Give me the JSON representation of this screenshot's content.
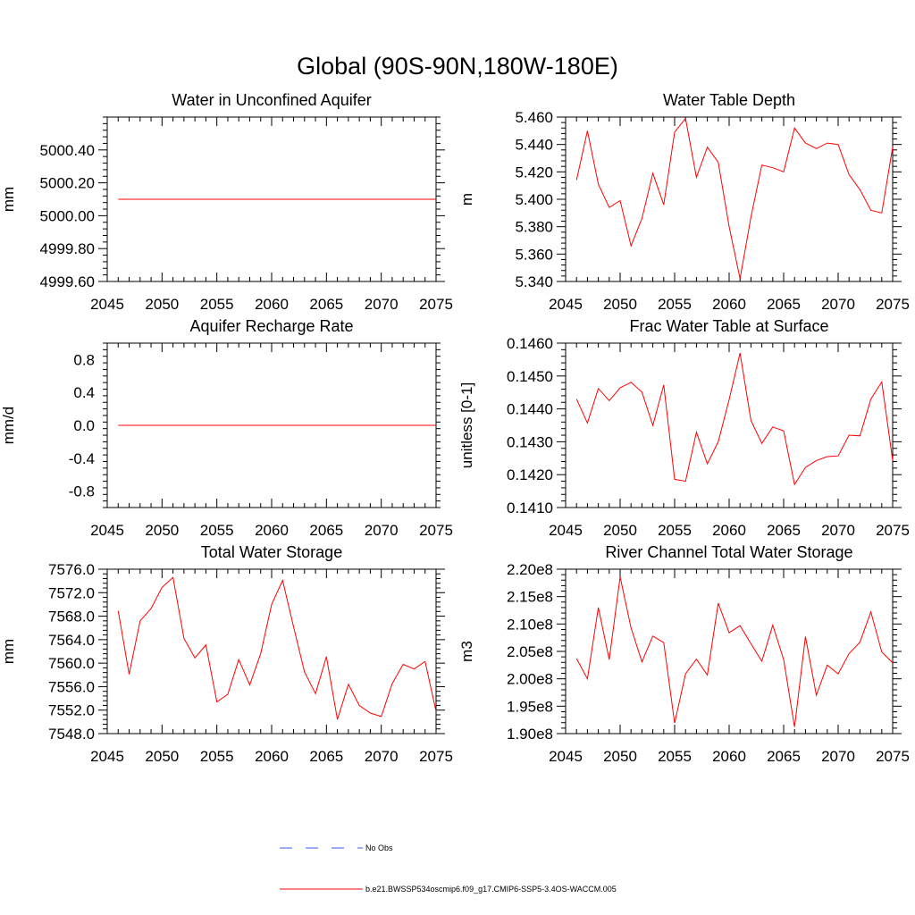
{
  "figure_title": "Global (90S-90N,180W-180E)",
  "chart_data": [
    {
      "type": "line",
      "title": "Water in Unconfined Aquifer",
      "xlabel": "",
      "ylabel": "mm",
      "xlim": [
        2045,
        2075
      ],
      "ylim": [
        4999.6,
        5000.6
      ],
      "xticks": [
        2045,
        2050,
        2055,
        2060,
        2065,
        2070,
        2075
      ],
      "xtick_labels": [
        "2045",
        "2050",
        "2055",
        "2060",
        "2065",
        "2070",
        "2075"
      ],
      "yticks": [
        4999.6,
        4999.8,
        5000.0,
        5000.2,
        5000.4
      ],
      "ytick_labels": [
        "4999.60",
        "4999.80",
        "5000.00",
        "5000.20",
        "5000.40"
      ],
      "series": [
        {
          "name": "b.e21.BWSSP534oscmip6.f09_g17.CMIP6-SSP5-3.4OS-WACCM.005",
          "color": "#ff0000",
          "x": [
            2046,
            2047,
            2048,
            2049,
            2050,
            2051,
            2052,
            2053,
            2054,
            2055,
            2056,
            2057,
            2058,
            2059,
            2060,
            2061,
            2062,
            2063,
            2064,
            2065,
            2066,
            2067,
            2068,
            2069,
            2070,
            2071,
            2072,
            2073,
            2074,
            2075
          ],
          "values": [
            5000.1,
            5000.1,
            5000.1,
            5000.1,
            5000.1,
            5000.1,
            5000.1,
            5000.1,
            5000.1,
            5000.1,
            5000.1,
            5000.1,
            5000.1,
            5000.1,
            5000.1,
            5000.1,
            5000.1,
            5000.1,
            5000.1,
            5000.1,
            5000.1,
            5000.1,
            5000.1,
            5000.1,
            5000.1,
            5000.1,
            5000.1,
            5000.1,
            5000.1,
            5000.1
          ]
        }
      ]
    },
    {
      "type": "line",
      "title": "Water Table Depth",
      "xlabel": "",
      "ylabel": "m",
      "xlim": [
        2045,
        2075
      ],
      "ylim": [
        5.34,
        5.46
      ],
      "xticks": [
        2045,
        2050,
        2055,
        2060,
        2065,
        2070,
        2075
      ],
      "xtick_labels": [
        "2045",
        "2050",
        "2055",
        "2060",
        "2065",
        "2070",
        "2075"
      ],
      "yticks": [
        5.34,
        5.36,
        5.38,
        5.4,
        5.42,
        5.44,
        5.46
      ],
      "ytick_labels": [
        "5.340",
        "5.360",
        "5.380",
        "5.400",
        "5.420",
        "5.440",
        "5.460"
      ],
      "series": [
        {
          "name": "b.e21.BWSSP534oscmip6.f09_g17.CMIP6-SSP5-3.4OS-WACCM.005",
          "color": "#ff0000",
          "x": [
            2046,
            2047,
            2048,
            2049,
            2050,
            2051,
            2052,
            2053,
            2054,
            2055,
            2056,
            2057,
            2058,
            2059,
            2060,
            2061,
            2062,
            2063,
            2064,
            2065,
            2066,
            2067,
            2068,
            2069,
            2070,
            2071,
            2072,
            2073,
            2074,
            2075
          ],
          "values": [
            5.414,
            5.45,
            5.411,
            5.394,
            5.399,
            5.366,
            5.386,
            5.419,
            5.396,
            5.449,
            5.459,
            5.416,
            5.438,
            5.427,
            5.38,
            5.342,
            5.387,
            5.425,
            5.423,
            5.42,
            5.452,
            5.441,
            5.437,
            5.441,
            5.44,
            5.418,
            5.407,
            5.392,
            5.39,
            5.438
          ]
        }
      ]
    },
    {
      "type": "line",
      "title": "Aquifer Recharge Rate",
      "xlabel": "",
      "ylabel": "mm/d",
      "xlim": [
        2045,
        2075
      ],
      "ylim": [
        -1.0,
        1.0
      ],
      "xticks": [
        2045,
        2050,
        2055,
        2060,
        2065,
        2070,
        2075
      ],
      "xtick_labels": [
        "2045",
        "2050",
        "2055",
        "2060",
        "2065",
        "2070",
        "2075"
      ],
      "yticks": [
        -0.8,
        -0.4,
        0.0,
        0.4,
        0.8
      ],
      "ytick_labels": [
        "-0.8",
        "-0.4",
        "0.0",
        "0.4",
        "0.8"
      ],
      "series": [
        {
          "name": "b.e21.BWSSP534oscmip6.f09_g17.CMIP6-SSP5-3.4OS-WACCM.005",
          "color": "#ff0000",
          "x": [
            2046,
            2047,
            2048,
            2049,
            2050,
            2051,
            2052,
            2053,
            2054,
            2055,
            2056,
            2057,
            2058,
            2059,
            2060,
            2061,
            2062,
            2063,
            2064,
            2065,
            2066,
            2067,
            2068,
            2069,
            2070,
            2071,
            2072,
            2073,
            2074,
            2075
          ],
          "values": [
            0,
            0,
            0,
            0,
            0,
            0,
            0,
            0,
            0,
            0,
            0,
            0,
            0,
            0,
            0,
            0,
            0,
            0,
            0,
            0,
            0,
            0,
            0,
            0,
            0,
            0,
            0,
            0,
            0,
            0
          ]
        }
      ]
    },
    {
      "type": "line",
      "title": "Frac Water Table at Surface",
      "xlabel": "",
      "ylabel": "unitless [0-1]",
      "xlim": [
        2045,
        2075
      ],
      "ylim": [
        0.141,
        0.146
      ],
      "xticks": [
        2045,
        2050,
        2055,
        2060,
        2065,
        2070,
        2075
      ],
      "xtick_labels": [
        "2045",
        "2050",
        "2055",
        "2060",
        "2065",
        "2070",
        "2075"
      ],
      "yticks": [
        0.141,
        0.142,
        0.143,
        0.144,
        0.145,
        0.146
      ],
      "ytick_labels": [
        "0.1410",
        "0.1420",
        "0.1430",
        "0.1440",
        "0.1450",
        "0.1460"
      ],
      "series": [
        {
          "name": "b.e21.BWSSP534oscmip6.f09_g17.CMIP6-SSP5-3.4OS-WACCM.005",
          "color": "#ff0000",
          "x": [
            2046,
            2047,
            2048,
            2049,
            2050,
            2051,
            2052,
            2053,
            2054,
            2055,
            2056,
            2057,
            2058,
            2059,
            2060,
            2061,
            2062,
            2063,
            2064,
            2065,
            2066,
            2067,
            2068,
            2069,
            2070,
            2071,
            2072,
            2073,
            2074,
            2075
          ],
          "values": [
            0.1443,
            0.14357,
            0.14462,
            0.14425,
            0.14464,
            0.14481,
            0.14451,
            0.1435,
            0.14473,
            0.14186,
            0.1418,
            0.14329,
            0.14233,
            0.143,
            0.14428,
            0.1457,
            0.14365,
            0.14295,
            0.14345,
            0.14333,
            0.1417,
            0.14222,
            0.14243,
            0.14255,
            0.14257,
            0.1432,
            0.14318,
            0.1443,
            0.14482,
            0.14243
          ]
        }
      ]
    },
    {
      "type": "line",
      "title": "Total Water Storage",
      "xlabel": "",
      "ylabel": "mm",
      "xlim": [
        2045,
        2075
      ],
      "ylim": [
        7548,
        7576
      ],
      "xticks": [
        2045,
        2050,
        2055,
        2060,
        2065,
        2070,
        2075
      ],
      "xtick_labels": [
        "2045",
        "2050",
        "2055",
        "2060",
        "2065",
        "2070",
        "2075"
      ],
      "yticks": [
        7548,
        7552,
        7556,
        7560,
        7564,
        7568,
        7572,
        7576
      ],
      "ytick_labels": [
        "7548.0",
        "7552.0",
        "7556.0",
        "7560.0",
        "7564.0",
        "7568.0",
        "7572.0",
        "7576.0"
      ],
      "series": [
        {
          "name": "b.e21.BWSSP534oscmip6.f09_g17.CMIP6-SSP5-3.4OS-WACCM.005",
          "color": "#ff0000",
          "x": [
            2046,
            2047,
            2048,
            2049,
            2050,
            2051,
            2052,
            2053,
            2054,
            2055,
            2056,
            2057,
            2058,
            2059,
            2060,
            2061,
            2062,
            2063,
            2064,
            2065,
            2066,
            2067,
            2068,
            2069,
            2070,
            2071,
            2072,
            2073,
            2074,
            2075
          ],
          "values": [
            7568.9,
            7558.1,
            7567.2,
            7569.3,
            7572.9,
            7574.6,
            7564.2,
            7560.9,
            7563.1,
            7553.4,
            7554.7,
            7560.6,
            7556.3,
            7561.6,
            7570.0,
            7574.1,
            7566.2,
            7558.5,
            7554.8,
            7561.1,
            7550.4,
            7556.4,
            7552.8,
            7551.5,
            7550.9,
            7556.5,
            7559.8,
            7559.0,
            7560.3,
            7551.8
          ]
        }
      ]
    },
    {
      "type": "line",
      "title": "River Channel Total Water Storage",
      "xlabel": "",
      "ylabel": "m3",
      "xlim": [
        2045,
        2075
      ],
      "ylim": [
        190000000.0,
        220000000.0
      ],
      "xticks": [
        2045,
        2050,
        2055,
        2060,
        2065,
        2070,
        2075
      ],
      "xtick_labels": [
        "2045",
        "2050",
        "2055",
        "2060",
        "2065",
        "2070",
        "2075"
      ],
      "yticks": [
        190000000.0,
        195000000.0,
        200000000.0,
        205000000.0,
        210000000.0,
        215000000.0,
        220000000.0
      ],
      "ytick_labels": [
        "1.90e8",
        "1.95e8",
        "2.00e8",
        "2.05e8",
        "2.10e8",
        "2.15e8",
        "2.20e8"
      ],
      "series": [
        {
          "name": "b.e21.BWSSP534oscmip6.f09_g17.CMIP6-SSP5-3.4OS-WACCM.005",
          "color": "#ff0000",
          "x": [
            2046,
            2047,
            2048,
            2049,
            2050,
            2051,
            2052,
            2053,
            2054,
            2055,
            2056,
            2057,
            2058,
            2059,
            2060,
            2061,
            2062,
            2063,
            2064,
            2065,
            2066,
            2067,
            2068,
            2069,
            2070,
            2071,
            2072,
            2073,
            2074,
            2075
          ],
          "values": [
            203700000.0,
            200000000.0,
            213000000.0,
            203500000.0,
            218600000.0,
            209300000.0,
            203100000.0,
            207800000.0,
            206600000.0,
            191900000.0,
            200900000.0,
            203600000.0,
            200700000.0,
            213800000.0,
            208400000.0,
            209700000.0,
            206400000.0,
            203200000.0,
            209800000.0,
            203500000.0,
            191200000.0,
            207700000.0,
            197000000.0,
            202500000.0,
            200900000.0,
            204600000.0,
            206700000.0,
            212200000.0,
            204900000.0,
            202900000.0
          ]
        }
      ]
    }
  ],
  "legend": {
    "placement": "bottom-center",
    "entries": [
      {
        "label": "No Obs",
        "color": "#3355ff",
        "style": "dashed"
      },
      {
        "label": "b.e21.BWSSP534oscmip6.f09_g17.CMIP6-SSP5-3.4OS-WACCM.005",
        "color": "#ff0000",
        "style": "solid"
      }
    ]
  }
}
